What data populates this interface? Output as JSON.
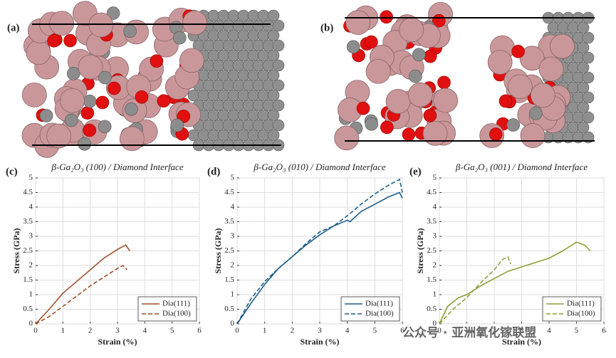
{
  "panels": [
    "(a)",
    "(b)"
  ],
  "watermark": "公众号 · 亚洲氧化镓联盟",
  "chart_data": [
    {
      "type": "line",
      "label": "(c)",
      "title": "β-Ga₂O₃ (100) / Diamond Interface",
      "x_label": "Strain (%)",
      "y_label": "Stress (GPa)",
      "xlim": [
        0,
        6
      ],
      "xticks": [
        0,
        1,
        2,
        3,
        4,
        5,
        6
      ],
      "ylim": [
        0,
        5
      ],
      "yticks": [
        0,
        0.5,
        1,
        1.5,
        2,
        2.5,
        3,
        3.5,
        4,
        4.5,
        5
      ],
      "grid": true,
      "legend": "lower right",
      "series": [
        {
          "name": "Dia(111)",
          "color": "#a0522d",
          "dash": false,
          "x": [
            0,
            0.5,
            1,
            1.5,
            2,
            2.5,
            3,
            3.3,
            3.45
          ],
          "values": [
            0,
            0.5,
            1.05,
            1.45,
            1.85,
            2.25,
            2.55,
            2.7,
            2.5
          ]
        },
        {
          "name": "Dia(100)",
          "color": "#a0522d",
          "dash": true,
          "x": [
            0,
            0.5,
            1,
            1.5,
            2,
            2.5,
            3,
            3.2,
            3.35
          ],
          "values": [
            0,
            0.25,
            0.6,
            0.95,
            1.3,
            1.6,
            1.9,
            2.0,
            1.85
          ]
        }
      ]
    },
    {
      "type": "line",
      "label": "(d)",
      "title": "β-Ga₂O₃ (010) / Diamond Interface",
      "x_label": "Strain (%)",
      "y_label": "Stress (GPa)",
      "xlim": [
        0,
        6
      ],
      "xticks": [
        0,
        1,
        2,
        3,
        4,
        5,
        6
      ],
      "ylim": [
        0,
        5
      ],
      "yticks": [
        0,
        0.5,
        1,
        1.5,
        2,
        2.5,
        3,
        3.5,
        4,
        4.5,
        5
      ],
      "grid": true,
      "legend": "lower right",
      "series": [
        {
          "name": "Dia(111)",
          "color": "#1f5f8b",
          "dash": false,
          "x": [
            0,
            0.5,
            1,
            1.5,
            2,
            2.5,
            3,
            3.5,
            4,
            4.1,
            4.5,
            5,
            5.5,
            5.9,
            6
          ],
          "values": [
            0,
            0.7,
            1.35,
            1.9,
            2.3,
            2.7,
            3.05,
            3.35,
            3.55,
            3.5,
            3.85,
            4.1,
            4.35,
            4.5,
            4.3
          ]
        },
        {
          "name": "Dia(100)",
          "color": "#1f5f8b",
          "dash": true,
          "x": [
            0,
            0.5,
            1,
            1.5,
            2,
            2.5,
            3,
            3.5,
            4,
            4.5,
            5,
            5.5,
            5.9,
            6
          ],
          "values": [
            0,
            0.85,
            1.45,
            1.9,
            2.3,
            2.75,
            3.15,
            3.35,
            3.7,
            4.1,
            4.45,
            4.75,
            4.95,
            4.5
          ]
        }
      ]
    },
    {
      "type": "line",
      "label": "(e)",
      "title": "β-Ga₂O₃ (001) / Diamond Interface",
      "x_label": "Strain (%)",
      "y_label": "Stress (GPa)",
      "xlim": [
        0,
        6
      ],
      "xticks": [
        0,
        1,
        2,
        3,
        4,
        5,
        6
      ],
      "ylim": [
        0,
        5
      ],
      "yticks": [
        0,
        0.5,
        1,
        1.5,
        2,
        2.5,
        3,
        3.5,
        4,
        4.5,
        5
      ],
      "grid": true,
      "legend": "lower right",
      "series": [
        {
          "name": "Dia(111)",
          "color": "#8aa13a",
          "dash": false,
          "x": [
            0,
            0.3,
            0.7,
            1,
            1.5,
            2,
            2.5,
            3,
            3.5,
            4,
            4.5,
            5,
            5.3,
            5.5
          ],
          "values": [
            0,
            0.6,
            0.9,
            1.0,
            1.3,
            1.55,
            1.8,
            1.95,
            2.1,
            2.25,
            2.5,
            2.8,
            2.7,
            2.5
          ]
        },
        {
          "name": "Dia(100)",
          "color": "#8aa13a",
          "dash": true,
          "x": [
            0,
            0.5,
            1,
            1.5,
            2,
            2.3,
            2.5,
            2.6
          ],
          "values": [
            0,
            0.5,
            0.9,
            1.4,
            1.85,
            2.2,
            2.3,
            2.05
          ]
        }
      ]
    }
  ]
}
